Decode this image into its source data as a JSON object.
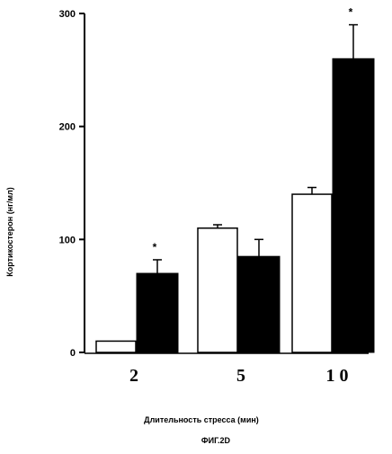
{
  "chart_data": {
    "type": "bar",
    "title": "",
    "xlabel": "Длительность стресса  (мин)",
    "ylabel": "Кортикостерон (нг/мл)",
    "caption": "ФИГ.2D",
    "categories": [
      "2",
      "5",
      "10"
    ],
    "ylim": [
      0,
      300
    ],
    "y_ticks": [
      "0",
      "100",
      "200",
      "300"
    ],
    "grid": false,
    "legend": "none",
    "series": [
      {
        "fill": "#ffffff",
        "values": [
          10,
          110,
          140
        ],
        "errors": [
          0,
          3,
          6
        ],
        "significance": [
          "",
          "",
          ""
        ]
      },
      {
        "fill": "#000000",
        "values": [
          70,
          85,
          260
        ],
        "errors": [
          12,
          15,
          30
        ],
        "significance": [
          "*",
          "",
          "*"
        ]
      }
    ]
  }
}
